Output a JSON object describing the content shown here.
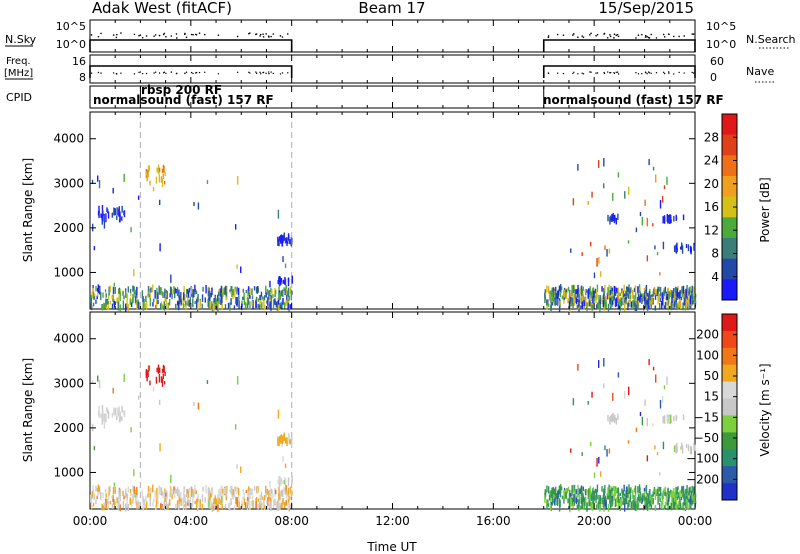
{
  "header": {
    "radar": "Adak West (fitACF)",
    "beam": "Beam 17",
    "date": "15/Sep/2015"
  },
  "labels": {
    "nsky": "N.Sky",
    "nsearch": "N.Search",
    "freq": "Freq.",
    "freq_unit": "[MHz]",
    "nave": "Nave",
    "cpid": "CPID",
    "xlabel": "Time UT"
  },
  "cpid_segments": [
    {
      "label": "normalsound (fast) 157 RF",
      "start_hr": 0.0
    },
    {
      "label": "rbsp 200 RF",
      "start_hr": 2.0
    },
    {
      "label": "normalsound (fast) 157 RF",
      "start_hr": 18.0
    }
  ],
  "colors": {
    "power": [
      "#1a1aff",
      "#2248a8",
      "#3b7d78",
      "#4caa3c",
      "#d4c018",
      "#f0a020",
      "#f07018",
      "#e04018",
      "#e01818"
    ],
    "velocity": [
      "#e01818",
      "#f04818",
      "#f07818",
      "#f0a820",
      "#d8d8d8",
      "#c8c8c8",
      "#7cd040",
      "#3c9a3c",
      "#2a9070",
      "#2a5aa8",
      "#2030c8"
    ],
    "dashed_line": "#bbbbbb"
  },
  "chart_data": {
    "type": "heatmap",
    "x_range_hr": [
      0,
      24
    ],
    "x_ticks": [
      "00:00",
      "04:00",
      "08:00",
      "12:00",
      "16:00",
      "20:00",
      "00:00"
    ],
    "data_gap_hr": [
      8.0,
      18.0
    ],
    "cpid_change_hr": [
      2.0,
      8.0
    ],
    "noise_panel": {
      "left_label": "N.Sky",
      "right_label": "N.Search",
      "left_ticks": [
        "10^5",
        "10^0"
      ],
      "right_ticks": [
        "10^5",
        "10^0"
      ]
    },
    "freq_panel": {
      "left_label": "Freq. [MHz]",
      "right_label": "Nave",
      "left_ticks": [
        "16",
        "8"
      ],
      "right_ticks": [
        "60",
        "0"
      ]
    },
    "panels": [
      {
        "ylabel": "Slant Range [km]",
        "ylim": [
          180,
          4600
        ],
        "y_ticks": [
          "1000",
          "2000",
          "3000",
          "4000"
        ],
        "colorbar": {
          "label": "Power [dB]",
          "tick_labels": [
            "28",
            "24",
            "20",
            "16",
            "12",
            "8",
            "4"
          ]
        }
      },
      {
        "ylabel": "Slant Range [km]",
        "ylim": [
          180,
          4600
        ],
        "y_ticks": [
          "1000",
          "2000",
          "3000",
          "4000"
        ],
        "colorbar": {
          "label": "Velocity [m s⁻¹]",
          "tick_labels": [
            "200",
            "100",
            "50",
            "15",
            "−15",
            "−50",
            "−100",
            "−200"
          ]
        }
      }
    ],
    "scatter_clusters": [
      {
        "t0": 0.0,
        "t1": 8.0,
        "r0": 200,
        "r1": 650,
        "n": 420,
        "power": [
          0.05,
          0.55
        ],
        "vel": [
          0.25,
          0.55
        ]
      },
      {
        "t0": 18.0,
        "t1": 24.0,
        "r0": 200,
        "r1": 650,
        "n": 520,
        "power": [
          0.05,
          0.6
        ],
        "vel": [
          0.55,
          0.85
        ]
      },
      {
        "t0": 0.3,
        "t1": 1.4,
        "r0": 2150,
        "r1": 2450,
        "n": 30,
        "power": [
          0.0,
          0.2
        ],
        "vel": [
          0.4,
          0.55
        ]
      },
      {
        "t0": 2.2,
        "t1": 3.0,
        "r0": 3000,
        "r1": 3350,
        "n": 26,
        "power": [
          0.45,
          0.8
        ],
        "vel": [
          0.0,
          0.1
        ]
      },
      {
        "t0": 7.4,
        "t1": 8.0,
        "r0": 1650,
        "r1": 1800,
        "n": 28,
        "power": [
          0.0,
          0.15
        ],
        "vel": [
          0.3,
          0.4
        ]
      },
      {
        "t0": 7.4,
        "t1": 8.0,
        "r0": 780,
        "r1": 840,
        "n": 18,
        "power": [
          0.0,
          0.15
        ],
        "vel": [
          0.4,
          0.55
        ]
      },
      {
        "t0": 20.5,
        "t1": 21.0,
        "r0": 2150,
        "r1": 2250,
        "n": 14,
        "power": [
          0.0,
          0.2
        ],
        "vel": [
          0.45,
          0.55
        ]
      },
      {
        "t0": 22.7,
        "t1": 23.6,
        "r0": 2150,
        "r1": 2250,
        "n": 18,
        "power": [
          0.0,
          0.15
        ],
        "vel": [
          0.4,
          0.55
        ]
      },
      {
        "t0": 23.0,
        "t1": 24.0,
        "r0": 1450,
        "r1": 1600,
        "n": 16,
        "power": [
          0.0,
          0.2
        ],
        "vel": [
          0.45,
          0.55
        ]
      },
      {
        "t0": 19.0,
        "t1": 23.0,
        "r0": 900,
        "r1": 3500,
        "n": 40,
        "power": [
          0.1,
          0.9
        ],
        "vel": [
          0.0,
          1.0
        ]
      },
      {
        "t0": 0.0,
        "t1": 8.0,
        "r0": 700,
        "r1": 3200,
        "n": 30,
        "power": [
          0.0,
          0.5
        ],
        "vel": [
          0.2,
          0.7
        ]
      }
    ]
  }
}
